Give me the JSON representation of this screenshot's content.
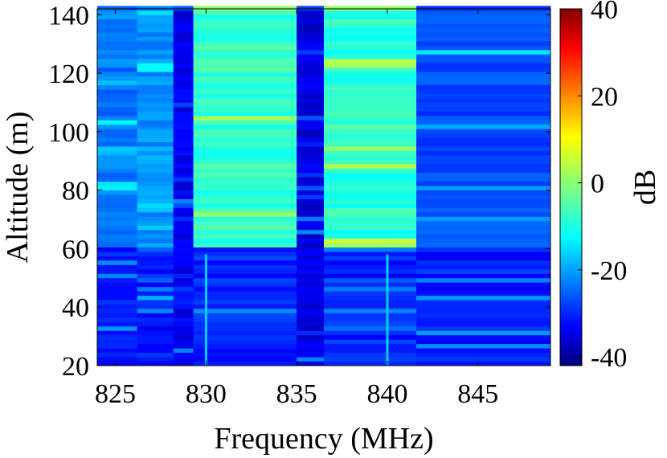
{
  "chart_data": {
    "type": "heatmap",
    "title": "",
    "xlabel": "Frequency (MHz)",
    "ylabel": "Altitude (m)",
    "colorbar_label": "dB",
    "colormap": "jet",
    "xlim": [
      824,
      849
    ],
    "ylim": [
      20,
      142
    ],
    "clim": [
      -42,
      40
    ],
    "x_ticks": [
      825,
      830,
      835,
      840,
      845
    ],
    "y_ticks": [
      20,
      40,
      60,
      80,
      100,
      120,
      140
    ],
    "colorbar_ticks": [
      -40,
      -20,
      0,
      20,
      40
    ],
    "grid": false,
    "frequency_bands": [
      {
        "from": 824,
        "to": 826.2,
        "db_above_60m": -22,
        "db_below_60m": -30
      },
      {
        "from": 826.2,
        "to": 828.2,
        "db_above_60m": -20,
        "db_below_60m": -30
      },
      {
        "from": 828.2,
        "to": 829.3,
        "db_above_60m": -33,
        "db_below_60m": -33
      },
      {
        "from": 829.3,
        "to": 835,
        "db_above_60m": -7,
        "db_below_60m": -29
      },
      {
        "from": 835,
        "to": 836.5,
        "db_above_60m": -34,
        "db_below_60m": -34
      },
      {
        "from": 836.5,
        "to": 841.6,
        "db_above_60m": -8,
        "db_below_60m": -29
      },
      {
        "from": 841.6,
        "to": 849,
        "db_above_60m": -26,
        "db_below_60m": -30
      }
    ],
    "vertical_spurs": [
      {
        "frequency": 830,
        "altitude_range": [
          20,
          58
        ],
        "db": -15
      },
      {
        "frequency": 840,
        "altitude_range": [
          20,
          58
        ],
        "db": -15
      }
    ],
    "transition_altitude": 60
  }
}
